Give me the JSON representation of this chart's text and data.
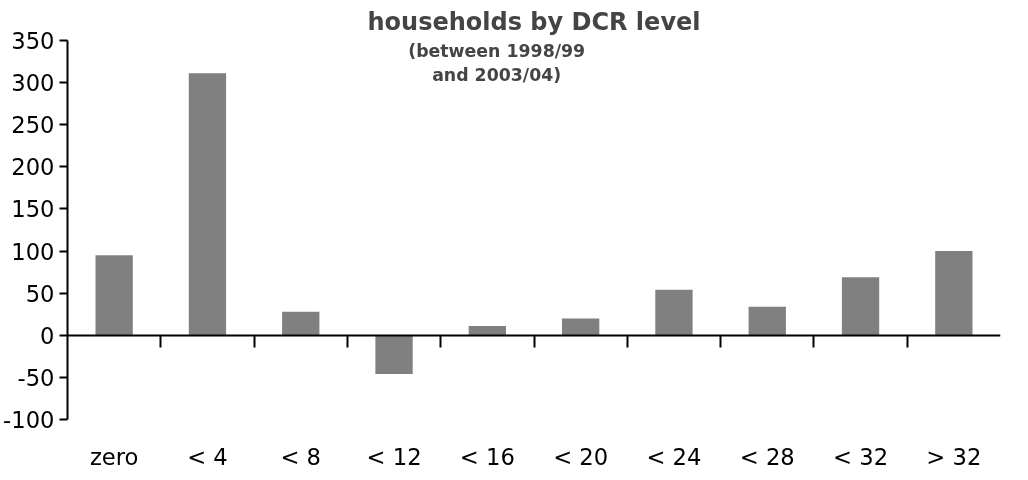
{
  "chart_data": {
    "type": "bar",
    "title": "households by DCR level",
    "subtitle": "(between 1998/99\nand 2003/04)",
    "categories": [
      "zero",
      "< 4",
      "< 8",
      "< 12",
      "< 16",
      "< 20",
      "< 24",
      "< 28",
      "< 32",
      "> 32"
    ],
    "values": [
      95,
      311,
      28,
      -46,
      11,
      20,
      54,
      34,
      69,
      100
    ],
    "color": "#808080",
    "ylim": [
      -100,
      350
    ],
    "yticks": [
      -100,
      -50,
      0,
      50,
      100,
      150,
      200,
      250,
      300,
      350
    ]
  }
}
